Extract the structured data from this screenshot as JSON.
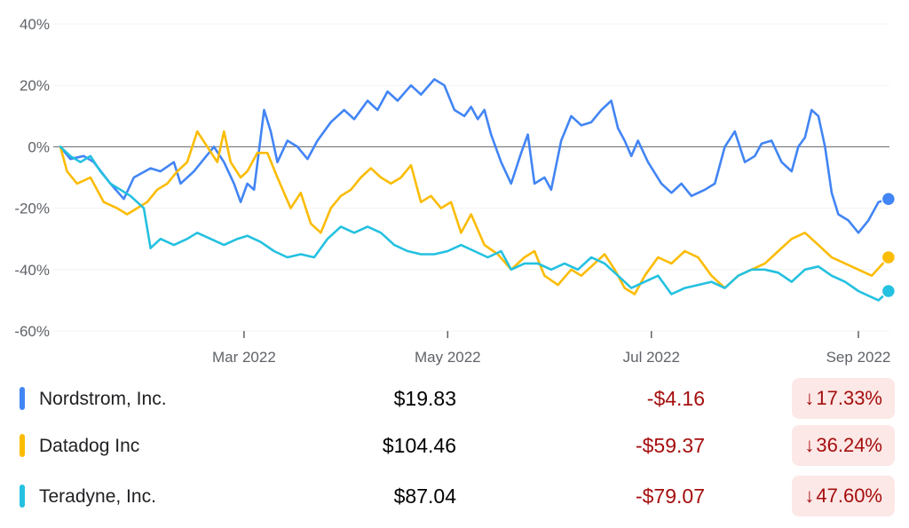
{
  "chart_data": {
    "type": "line",
    "x_labels": [
      "Mar 2022",
      "May 2022",
      "Jul 2022",
      "Sep 2022"
    ],
    "y_ticks": [
      "40%",
      "20%",
      "0%",
      "-20%",
      "-40%",
      "-60%"
    ],
    "ylim": [
      -60,
      40
    ],
    "zero_line": true,
    "grid": true,
    "series": [
      {
        "name": "Nordstrom, Inc.",
        "color": "#4285f4",
        "points": [
          [
            "2022-01-05",
            0
          ],
          [
            "2022-01-08",
            -4
          ],
          [
            "2022-01-12",
            -3
          ],
          [
            "2022-01-15",
            -5
          ],
          [
            "2022-01-20",
            -12
          ],
          [
            "2022-01-24",
            -17
          ],
          [
            "2022-01-27",
            -10
          ],
          [
            "2022-02-01",
            -7
          ],
          [
            "2022-02-04",
            -8
          ],
          [
            "2022-02-08",
            -5
          ],
          [
            "2022-02-10",
            -12
          ],
          [
            "2022-02-14",
            -8
          ],
          [
            "2022-02-17",
            -4
          ],
          [
            "2022-02-20",
            0
          ],
          [
            "2022-02-23",
            -5
          ],
          [
            "2022-02-26",
            -12
          ],
          [
            "2022-02-28",
            -18
          ],
          [
            "2022-03-02",
            -12
          ],
          [
            "2022-03-04",
            -14
          ],
          [
            "2022-03-07",
            12
          ],
          [
            "2022-03-09",
            5
          ],
          [
            "2022-03-11",
            -5
          ],
          [
            "2022-03-14",
            2
          ],
          [
            "2022-03-17",
            0
          ],
          [
            "2022-03-20",
            -4
          ],
          [
            "2022-03-23",
            2
          ],
          [
            "2022-03-27",
            8
          ],
          [
            "2022-03-31",
            12
          ],
          [
            "2022-04-03",
            9
          ],
          [
            "2022-04-07",
            15
          ],
          [
            "2022-04-10",
            12
          ],
          [
            "2022-04-13",
            18
          ],
          [
            "2022-04-16",
            15
          ],
          [
            "2022-04-20",
            20
          ],
          [
            "2022-04-23",
            17
          ],
          [
            "2022-04-27",
            22
          ],
          [
            "2022-04-30",
            20
          ],
          [
            "2022-05-03",
            12
          ],
          [
            "2022-05-06",
            10
          ],
          [
            "2022-05-08",
            13
          ],
          [
            "2022-05-10",
            9
          ],
          [
            "2022-05-12",
            12
          ],
          [
            "2022-05-14",
            4
          ],
          [
            "2022-05-17",
            -5
          ],
          [
            "2022-05-20",
            -12
          ],
          [
            "2022-05-23",
            -2
          ],
          [
            "2022-05-25",
            4
          ],
          [
            "2022-05-27",
            -12
          ],
          [
            "2022-05-30",
            -10
          ],
          [
            "2022-06-01",
            -14
          ],
          [
            "2022-06-04",
            2
          ],
          [
            "2022-06-07",
            10
          ],
          [
            "2022-06-10",
            7
          ],
          [
            "2022-06-13",
            8
          ],
          [
            "2022-06-16",
            12
          ],
          [
            "2022-06-19",
            15
          ],
          [
            "2022-06-21",
            6
          ],
          [
            "2022-06-23",
            2
          ],
          [
            "2022-06-25",
            -3
          ],
          [
            "2022-06-27",
            2
          ],
          [
            "2022-06-30",
            -5
          ],
          [
            "2022-07-04",
            -12
          ],
          [
            "2022-07-07",
            -15
          ],
          [
            "2022-07-10",
            -12
          ],
          [
            "2022-07-13",
            -16
          ],
          [
            "2022-07-17",
            -14
          ],
          [
            "2022-07-20",
            -12
          ],
          [
            "2022-07-23",
            0
          ],
          [
            "2022-07-26",
            5
          ],
          [
            "2022-07-29",
            -5
          ],
          [
            "2022-08-01",
            -3
          ],
          [
            "2022-08-03",
            1
          ],
          [
            "2022-08-06",
            2
          ],
          [
            "2022-08-09",
            -5
          ],
          [
            "2022-08-12",
            -8
          ],
          [
            "2022-08-14",
            0
          ],
          [
            "2022-08-16",
            3
          ],
          [
            "2022-08-18",
            12
          ],
          [
            "2022-08-20",
            10
          ],
          [
            "2022-08-22",
            0
          ],
          [
            "2022-08-24",
            -15
          ],
          [
            "2022-08-26",
            -22
          ],
          [
            "2022-08-29",
            -24
          ],
          [
            "2022-09-01",
            -28
          ],
          [
            "2022-09-04",
            -24
          ],
          [
            "2022-09-07",
            -18
          ],
          [
            "2022-09-10",
            -17
          ]
        ]
      },
      {
        "name": "Datadog Inc",
        "color": "#fbbc04",
        "points": [
          [
            "2022-01-05",
            0
          ],
          [
            "2022-01-07",
            -8
          ],
          [
            "2022-01-10",
            -12
          ],
          [
            "2022-01-14",
            -10
          ],
          [
            "2022-01-18",
            -18
          ],
          [
            "2022-01-22",
            -20
          ],
          [
            "2022-01-25",
            -22
          ],
          [
            "2022-01-28",
            -20
          ],
          [
            "2022-01-31",
            -18
          ],
          [
            "2022-02-03",
            -14
          ],
          [
            "2022-02-06",
            -12
          ],
          [
            "2022-02-09",
            -8
          ],
          [
            "2022-02-12",
            -5
          ],
          [
            "2022-02-15",
            5
          ],
          [
            "2022-02-18",
            0
          ],
          [
            "2022-02-21",
            -5
          ],
          [
            "2022-02-23",
            5
          ],
          [
            "2022-02-25",
            -5
          ],
          [
            "2022-02-28",
            -10
          ],
          [
            "2022-03-02",
            -8
          ],
          [
            "2022-03-05",
            -2
          ],
          [
            "2022-03-08",
            -2
          ],
          [
            "2022-03-11",
            -10
          ],
          [
            "2022-03-15",
            -20
          ],
          [
            "2022-03-18",
            -15
          ],
          [
            "2022-03-21",
            -25
          ],
          [
            "2022-03-24",
            -28
          ],
          [
            "2022-03-27",
            -20
          ],
          [
            "2022-03-30",
            -16
          ],
          [
            "2022-04-02",
            -14
          ],
          [
            "2022-04-05",
            -10
          ],
          [
            "2022-04-08",
            -7
          ],
          [
            "2022-04-11",
            -10
          ],
          [
            "2022-04-14",
            -12
          ],
          [
            "2022-04-17",
            -10
          ],
          [
            "2022-04-20",
            -6
          ],
          [
            "2022-04-23",
            -18
          ],
          [
            "2022-04-26",
            -16
          ],
          [
            "2022-04-29",
            -20
          ],
          [
            "2022-05-02",
            -18
          ],
          [
            "2022-05-05",
            -28
          ],
          [
            "2022-05-08",
            -22
          ],
          [
            "2022-05-12",
            -32
          ],
          [
            "2022-05-16",
            -35
          ],
          [
            "2022-05-20",
            -40
          ],
          [
            "2022-05-24",
            -36
          ],
          [
            "2022-05-27",
            -34
          ],
          [
            "2022-05-30",
            -42
          ],
          [
            "2022-06-03",
            -45
          ],
          [
            "2022-06-07",
            -40
          ],
          [
            "2022-06-10",
            -42
          ],
          [
            "2022-06-14",
            -38
          ],
          [
            "2022-06-17",
            -35
          ],
          [
            "2022-06-20",
            -40
          ],
          [
            "2022-06-23",
            -46
          ],
          [
            "2022-06-26",
            -48
          ],
          [
            "2022-06-29",
            -42
          ],
          [
            "2022-07-03",
            -36
          ],
          [
            "2022-07-07",
            -38
          ],
          [
            "2022-07-11",
            -34
          ],
          [
            "2022-07-15",
            -36
          ],
          [
            "2022-07-19",
            -42
          ],
          [
            "2022-07-23",
            -46
          ],
          [
            "2022-07-27",
            -42
          ],
          [
            "2022-07-31",
            -40
          ],
          [
            "2022-08-04",
            -38
          ],
          [
            "2022-08-08",
            -34
          ],
          [
            "2022-08-12",
            -30
          ],
          [
            "2022-08-16",
            -28
          ],
          [
            "2022-08-20",
            -32
          ],
          [
            "2022-08-24",
            -36
          ],
          [
            "2022-08-28",
            -38
          ],
          [
            "2022-09-01",
            -40
          ],
          [
            "2022-09-05",
            -42
          ],
          [
            "2022-09-10",
            -36
          ]
        ]
      },
      {
        "name": "Teradyne, Inc.",
        "color": "#24c1e0",
        "points": [
          [
            "2022-01-05",
            0
          ],
          [
            "2022-01-08",
            -3
          ],
          [
            "2022-01-11",
            -5
          ],
          [
            "2022-01-14",
            -3
          ],
          [
            "2022-01-17",
            -8
          ],
          [
            "2022-01-20",
            -12
          ],
          [
            "2022-01-23",
            -14
          ],
          [
            "2022-01-26",
            -16
          ],
          [
            "2022-01-28",
            -18
          ],
          [
            "2022-01-30",
            -20
          ],
          [
            "2022-02-01",
            -33
          ],
          [
            "2022-02-04",
            -30
          ],
          [
            "2022-02-08",
            -32
          ],
          [
            "2022-02-12",
            -30
          ],
          [
            "2022-02-15",
            -28
          ],
          [
            "2022-02-19",
            -30
          ],
          [
            "2022-02-23",
            -32
          ],
          [
            "2022-02-27",
            -30
          ],
          [
            "2022-03-02",
            -29
          ],
          [
            "2022-03-06",
            -31
          ],
          [
            "2022-03-10",
            -34
          ],
          [
            "2022-03-14",
            -36
          ],
          [
            "2022-03-18",
            -35
          ],
          [
            "2022-03-22",
            -36
          ],
          [
            "2022-03-26",
            -30
          ],
          [
            "2022-03-30",
            -26
          ],
          [
            "2022-04-03",
            -28
          ],
          [
            "2022-04-07",
            -26
          ],
          [
            "2022-04-11",
            -28
          ],
          [
            "2022-04-15",
            -32
          ],
          [
            "2022-04-19",
            -34
          ],
          [
            "2022-04-23",
            -35
          ],
          [
            "2022-04-27",
            -35
          ],
          [
            "2022-05-01",
            -34
          ],
          [
            "2022-05-05",
            -32
          ],
          [
            "2022-05-09",
            -34
          ],
          [
            "2022-05-13",
            -36
          ],
          [
            "2022-05-17",
            -34
          ],
          [
            "2022-05-20",
            -40
          ],
          [
            "2022-05-24",
            -38
          ],
          [
            "2022-05-28",
            -38
          ],
          [
            "2022-06-01",
            -40
          ],
          [
            "2022-06-05",
            -38
          ],
          [
            "2022-06-09",
            -40
          ],
          [
            "2022-06-13",
            -36
          ],
          [
            "2022-06-17",
            -38
          ],
          [
            "2022-06-21",
            -42
          ],
          [
            "2022-06-25",
            -46
          ],
          [
            "2022-06-29",
            -44
          ],
          [
            "2022-07-03",
            -42
          ],
          [
            "2022-07-07",
            -48
          ],
          [
            "2022-07-11",
            -46
          ],
          [
            "2022-07-15",
            -45
          ],
          [
            "2022-07-19",
            -44
          ],
          [
            "2022-07-23",
            -46
          ],
          [
            "2022-07-27",
            -42
          ],
          [
            "2022-07-31",
            -40
          ],
          [
            "2022-08-04",
            -40
          ],
          [
            "2022-08-08",
            -41
          ],
          [
            "2022-08-12",
            -44
          ],
          [
            "2022-08-16",
            -40
          ],
          [
            "2022-08-20",
            -39
          ],
          [
            "2022-08-24",
            -42
          ],
          [
            "2022-08-28",
            -44
          ],
          [
            "2022-09-01",
            -47
          ],
          [
            "2022-09-05",
            -49
          ],
          [
            "2022-09-07",
            -50
          ],
          [
            "2022-09-10",
            -47
          ]
        ]
      }
    ]
  },
  "legend": [
    {
      "name": "Nordstrom, Inc.",
      "color": "#4285f4",
      "price": "$19.83",
      "change": "-$4.16",
      "arrow": "↓",
      "percent": "17.33%"
    },
    {
      "name": "Datadog Inc",
      "color": "#fbbc04",
      "price": "$104.46",
      "change": "-$59.37",
      "arrow": "↓",
      "percent": "36.24%"
    },
    {
      "name": "Teradyne, Inc.",
      "color": "#24c1e0",
      "price": "$87.04",
      "change": "-$79.07",
      "arrow": "↓",
      "percent": "47.60%"
    }
  ]
}
